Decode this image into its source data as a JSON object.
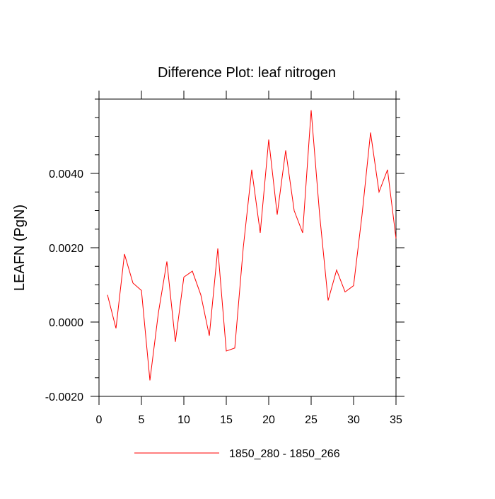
{
  "chart_data": {
    "type": "line",
    "title": "Difference Plot: leaf nitrogen",
    "xlabel": "",
    "ylabel": "LEAFN  (PgN)",
    "xlim": [
      0,
      35
    ],
    "ylim": [
      -0.002,
      0.006
    ],
    "x_ticks": [
      0,
      5,
      10,
      15,
      20,
      25,
      30,
      35
    ],
    "x_tick_labels": [
      "0",
      "5",
      "10",
      "15",
      "20",
      "25",
      "30",
      "35"
    ],
    "y_ticks": [
      -0.002,
      0.0,
      0.002,
      0.004
    ],
    "y_tick_labels": [
      "-0.0020",
      "0.0000",
      "0.0020",
      "0.0040"
    ],
    "grid": false,
    "legend_position": "bottom-center",
    "series": [
      {
        "name": "1850_280 - 1850_266",
        "color": "#ff0000",
        "x": [
          1,
          2,
          3,
          4,
          5,
          6,
          7,
          8,
          9,
          10,
          11,
          12,
          13,
          14,
          15,
          16,
          17,
          18,
          19,
          20,
          21,
          22,
          23,
          24,
          25,
          26,
          27,
          28,
          29,
          30,
          31,
          32,
          33,
          34,
          35
        ],
        "values": [
          0.00073,
          -0.00017,
          0.00183,
          0.00105,
          0.00085,
          -0.00157,
          0.00025,
          0.00163,
          -0.00053,
          0.00121,
          0.00137,
          0.00073,
          -0.00037,
          0.00198,
          -0.00078,
          -0.0007,
          0.002,
          0.0041,
          0.0024,
          0.00491,
          0.00289,
          0.00462,
          0.003,
          0.0024,
          0.0057,
          0.00289,
          0.00058,
          0.0014,
          0.00081,
          0.00098,
          0.00289,
          0.0051,
          0.0035,
          0.0041,
          0.00225
        ]
      }
    ]
  }
}
